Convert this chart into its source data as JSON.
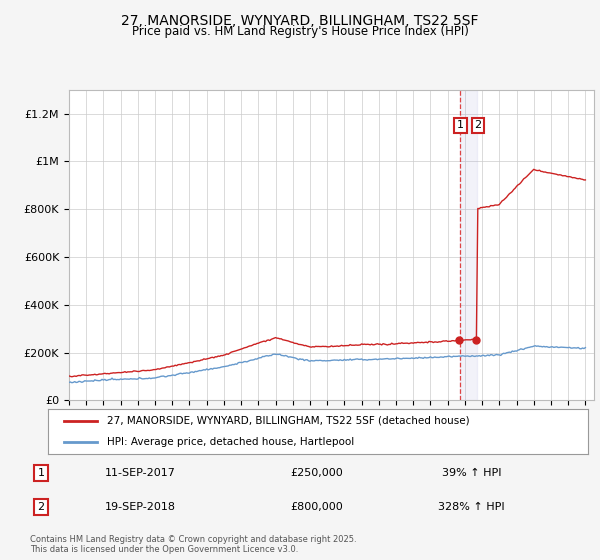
{
  "title": "27, MANORSIDE, WYNYARD, BILLINGHAM, TS22 5SF",
  "subtitle": "Price paid vs. HM Land Registry's House Price Index (HPI)",
  "ylim": [
    0,
    1300000
  ],
  "yticks": [
    0,
    200000,
    400000,
    600000,
    800000,
    1000000,
    1200000
  ],
  "ytick_labels": [
    "£0",
    "£200K",
    "£400K",
    "£600K",
    "£800K",
    "£1M",
    "£1.2M"
  ],
  "bg_color": "#f5f5f5",
  "plot_bg_color": "#ffffff",
  "legend_line1": "27, MANORSIDE, WYNYARD, BILLINGHAM, TS22 5SF (detached house)",
  "legend_line2": "HPI: Average price, detached house, Hartlepool",
  "transaction1_date": "11-SEP-2017",
  "transaction1_price": 250000,
  "transaction1_pct": "39%",
  "transaction2_date": "19-SEP-2018",
  "transaction2_price": 800000,
  "transaction2_pct": "328%",
  "footnote": "Contains HM Land Registry data © Crown copyright and database right 2025.\nThis data is licensed under the Open Government Licence v3.0.",
  "red_color": "#cc2222",
  "blue_color": "#6699cc",
  "dashed_color": "#dd4444",
  "shade_color": "#ddddff"
}
